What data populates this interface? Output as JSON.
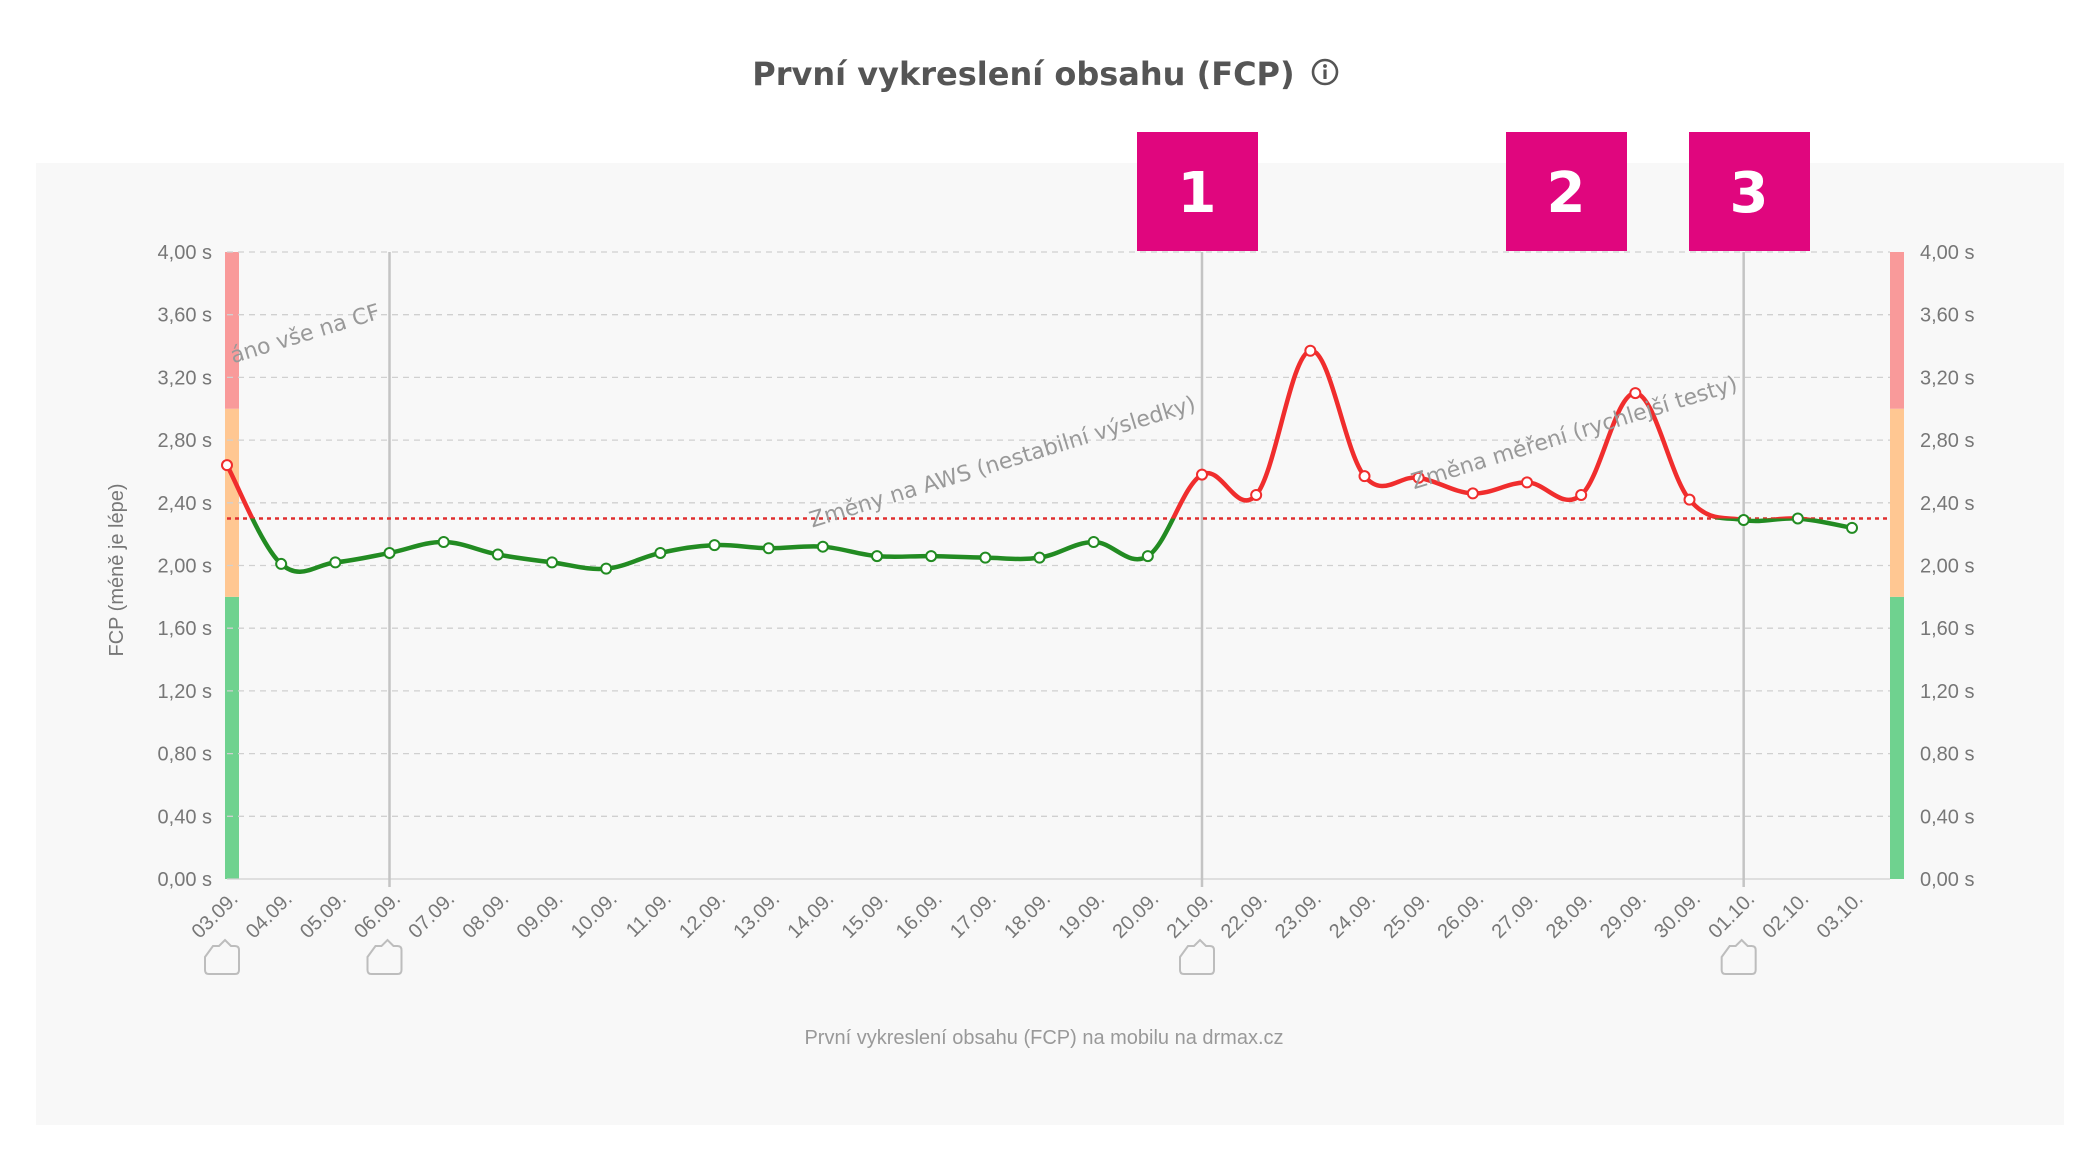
{
  "title": "První vykreslení obsahu (FCP)",
  "info_icon": "info-circle-icon",
  "chart_data": {
    "type": "line",
    "xlabel": "",
    "ylabel": "FCP (méně je lépe)",
    "footer": "První vykreslení obsahu (FCP) na mobilu na drmax.cz",
    "ylim": [
      0,
      4
    ],
    "y_ticks": [
      "0,00 s",
      "0,40 s",
      "0,80 s",
      "1,20 s",
      "1,60 s",
      "2,00 s",
      "2,40 s",
      "2,80 s",
      "3,20 s",
      "3,60 s",
      "4,00 s"
    ],
    "categories": [
      "03.09.",
      "04.09.",
      "05.09.",
      "06.09.",
      "07.09.",
      "08.09.",
      "09.09.",
      "10.09.",
      "11.09.",
      "12.09.",
      "13.09.",
      "14.09.",
      "15.09.",
      "16.09.",
      "17.09.",
      "18.09.",
      "19.09.",
      "20.09.",
      "21.09.",
      "22.09.",
      "23.09.",
      "24.09.",
      "25.09.",
      "26.09.",
      "27.09.",
      "28.09.",
      "29.09.",
      "30.09.",
      "01.10.",
      "02.10.",
      "03.10."
    ],
    "series": [
      {
        "values": [
          2.64,
          2.01,
          2.02,
          2.08,
          2.15,
          2.07,
          2.02,
          1.98,
          2.08,
          2.13,
          2.11,
          2.12,
          2.06,
          2.06,
          2.05,
          2.05,
          2.15,
          2.06,
          2.58,
          2.45,
          3.37,
          2.57,
          2.56,
          2.46,
          2.53,
          2.45,
          3.1,
          2.42,
          2.29,
          2.3,
          2.24
        ]
      }
    ],
    "threshold": {
      "value": 2.3,
      "color": "#e03030",
      "style": "dotted"
    },
    "line_colors": {
      "good": "#228b22",
      "bad": "#f02d2d"
    },
    "bands": [
      {
        "from": 0,
        "to": 1.8,
        "color": "#6fd28f"
      },
      {
        "from": 1.8,
        "to": 3.0,
        "color": "#ffc792"
      },
      {
        "from": 3.0,
        "to": 4.0,
        "color": "#f99a9a"
      }
    ],
    "annotations": [
      {
        "x": "06.09.",
        "label": "áno vše na CF"
      },
      {
        "x": "21.09.",
        "label": "Změny na AWS (nestabilní výsledky)"
      },
      {
        "x": "01.10.",
        "label": "Změna měření (rychlejší testy)"
      }
    ],
    "markers": [
      "03.09.",
      "06.09.",
      "21.09.",
      "01.10."
    ],
    "badges": [
      {
        "x": "21.09.",
        "label": "1"
      },
      {
        "x": "28.09.",
        "label": "2"
      },
      {
        "x": "01.10.",
        "label": "3"
      }
    ],
    "badge_color": "#e0067e",
    "grid": true
  }
}
